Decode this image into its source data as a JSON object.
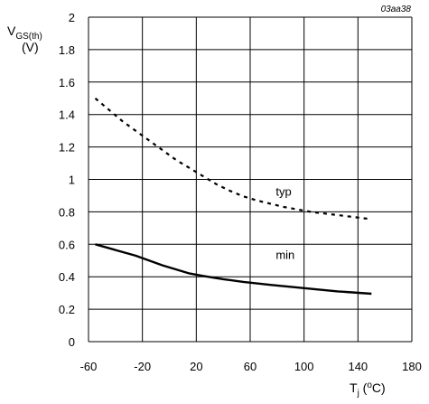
{
  "chart_data": {
    "type": "line",
    "figure_ref": "03aa38",
    "ylabel": {
      "main": "V",
      "sub": "GS(th)",
      "unit": "(V)"
    },
    "xlabel": {
      "main": "T",
      "sub": "j",
      "open": " (",
      "sup": "o",
      "close": "C)"
    },
    "xlim": [
      -60,
      180
    ],
    "ylim": [
      0,
      2
    ],
    "grid": true,
    "x_ticks": [
      -60,
      -20,
      20,
      60,
      100,
      140,
      180
    ],
    "y_ticks": [
      {
        "value": 0,
        "label": "0"
      },
      {
        "value": 0.2,
        "label": "0.2"
      },
      {
        "value": 0.4,
        "label": "0.4"
      },
      {
        "value": 0.6,
        "label": "0.6"
      },
      {
        "value": 0.8,
        "label": "0.8"
      },
      {
        "value": 1.0,
        "label": "1"
      },
      {
        "value": 1.2,
        "label": "1.2"
      },
      {
        "value": 1.4,
        "label": "1.4"
      },
      {
        "value": 1.6,
        "label": "1.6"
      },
      {
        "value": 1.8,
        "label": "1.8"
      },
      {
        "value": 2.0,
        "label": "2"
      }
    ],
    "series": [
      {
        "name": "typ",
        "style": "dashed",
        "label_at": {
          "x": 79,
          "y": 0.9
        },
        "x": [
          -55,
          -45,
          -35,
          -25,
          -15,
          -5,
          5,
          15,
          25,
          35,
          45,
          55,
          65,
          75,
          85,
          95,
          105,
          115,
          125,
          135,
          145,
          150
        ],
        "y": [
          1.5,
          1.43,
          1.36,
          1.3,
          1.24,
          1.18,
          1.12,
          1.07,
          1.02,
          0.97,
          0.93,
          0.895,
          0.87,
          0.85,
          0.83,
          0.815,
          0.8,
          0.79,
          0.78,
          0.77,
          0.76,
          0.755
        ]
      },
      {
        "name": "min",
        "style": "solid",
        "label_at": {
          "x": 79,
          "y": 0.51
        },
        "x": [
          -55,
          -40,
          -25,
          -15,
          -5,
          5,
          15,
          25,
          40,
          55,
          75,
          100,
          125,
          150
        ],
        "y": [
          0.6,
          0.565,
          0.53,
          0.5,
          0.47,
          0.445,
          0.42,
          0.405,
          0.385,
          0.368,
          0.35,
          0.33,
          0.31,
          0.295
        ]
      }
    ]
  }
}
